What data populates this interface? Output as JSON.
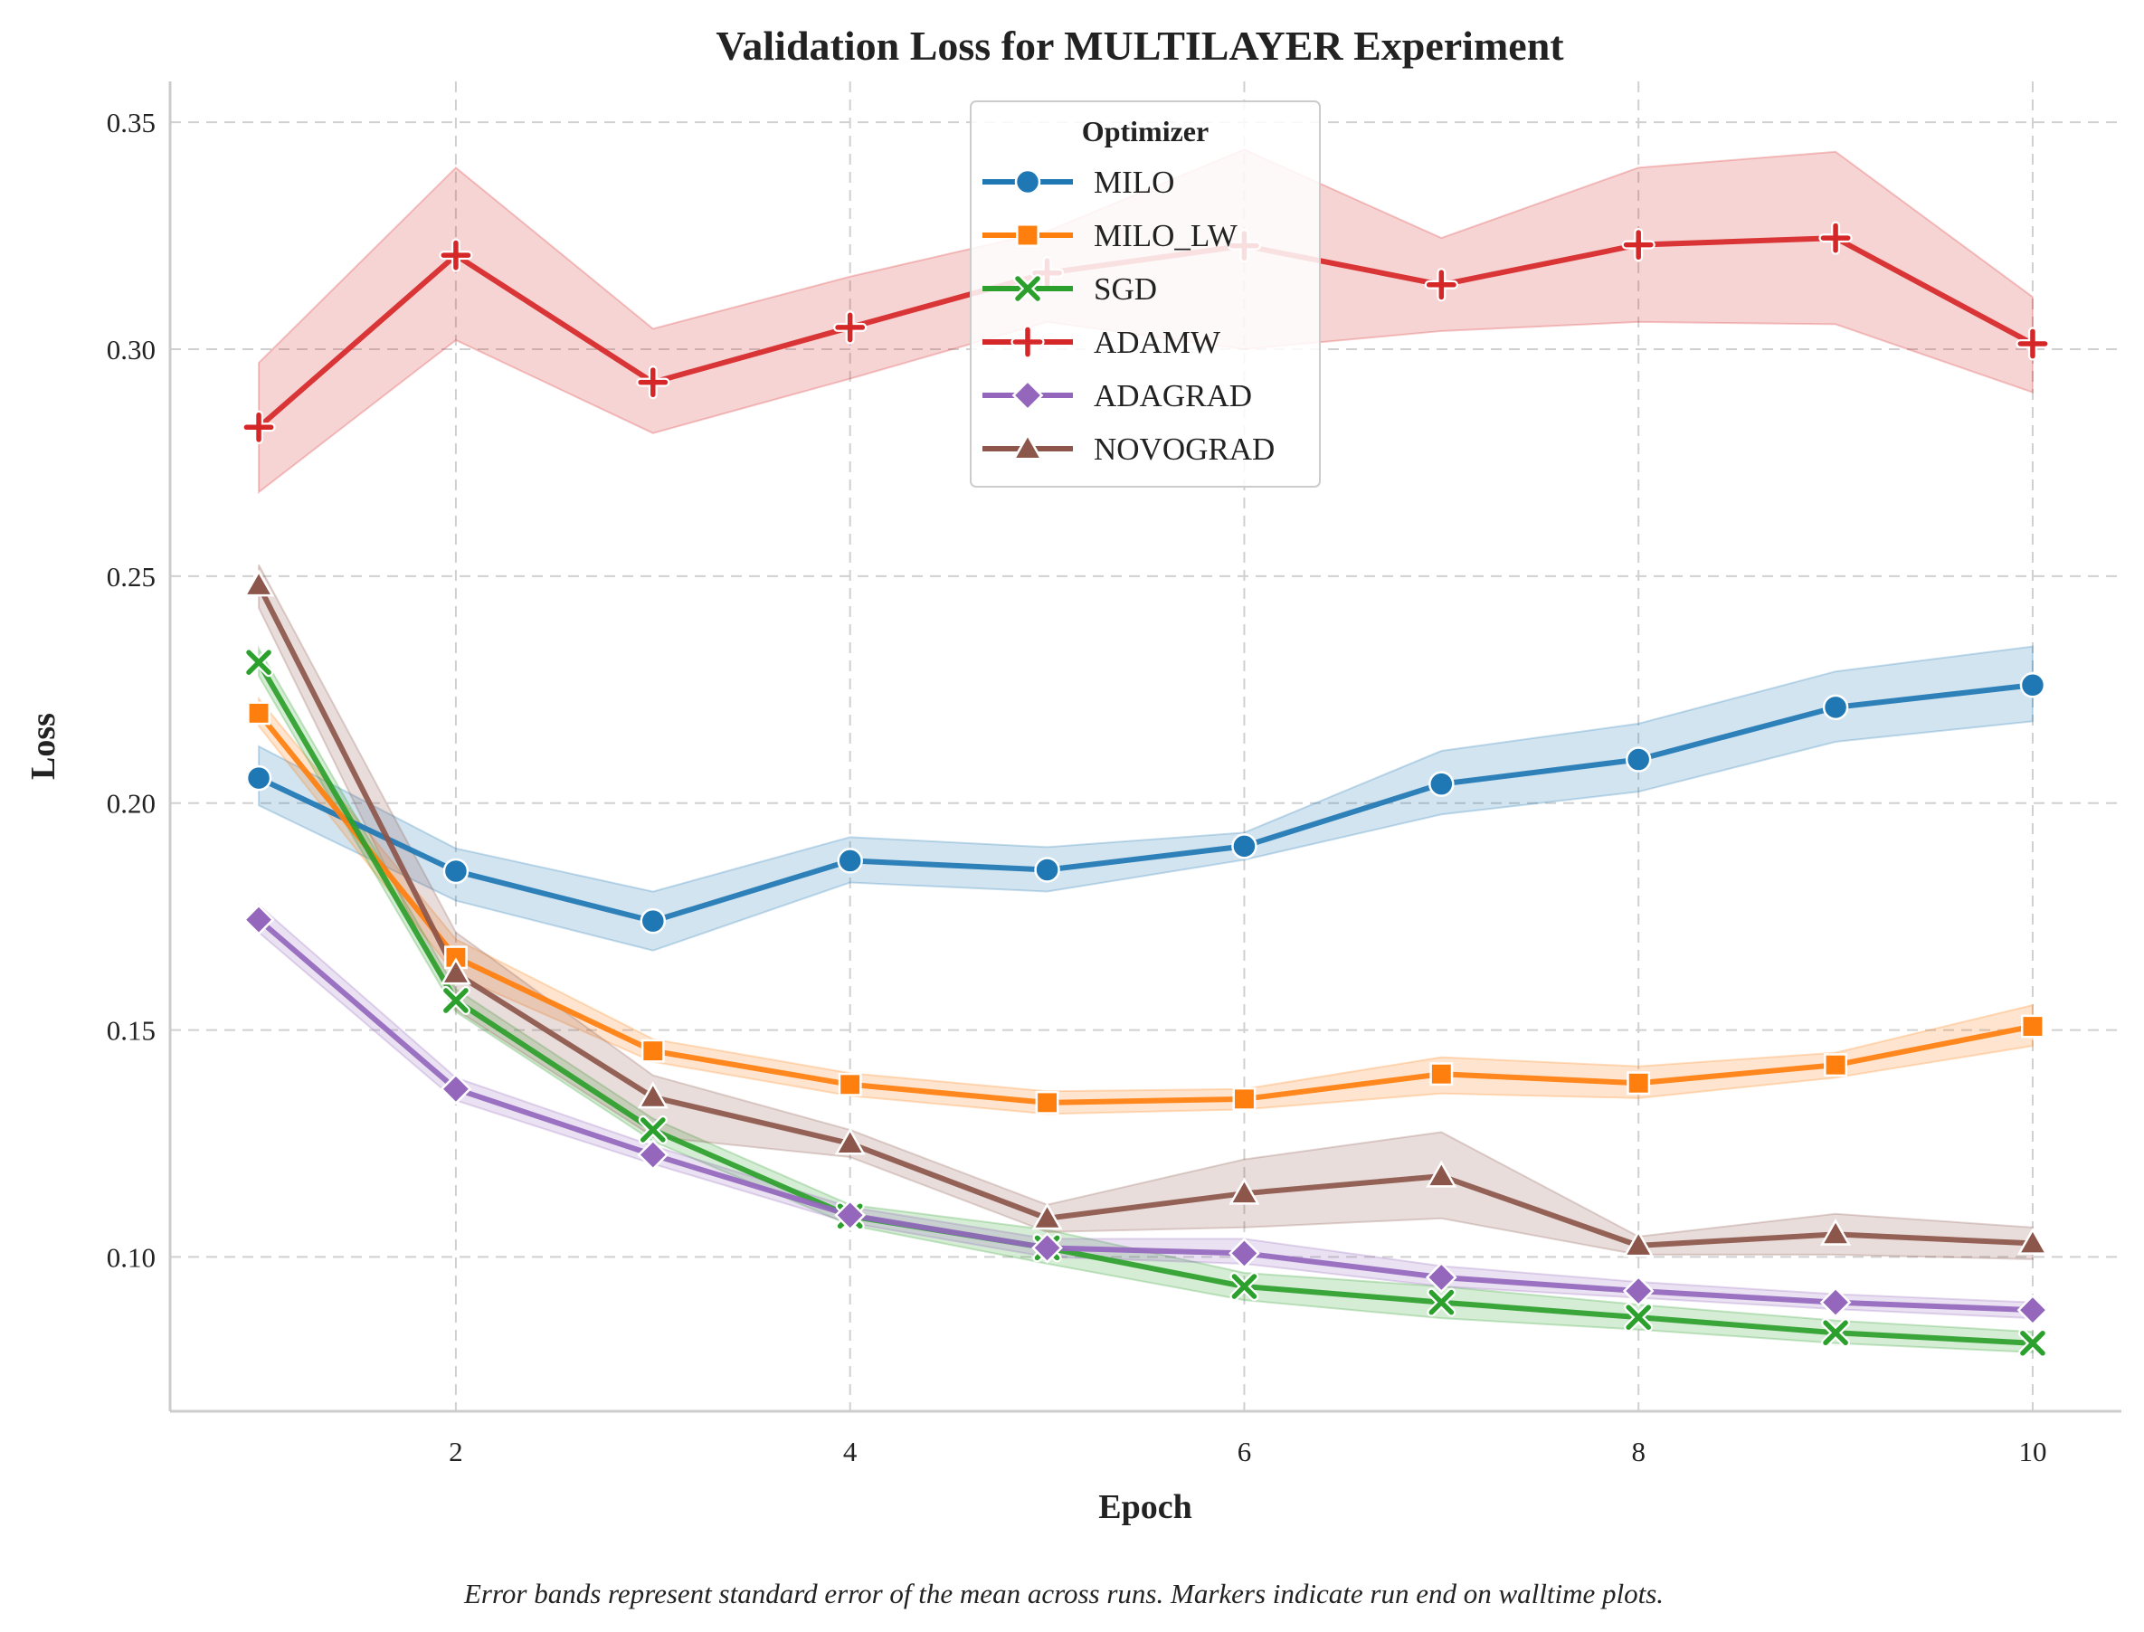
{
  "chart_data": {
    "type": "line",
    "title": "Validation Loss for MULTILAYER Experiment",
    "xlabel": "Epoch",
    "ylabel": "Loss",
    "caption": "Error bands represent standard error of the mean across runs. Markers indicate run end on walltime plots.",
    "x": [
      1,
      2,
      3,
      4,
      5,
      6,
      7,
      8,
      9,
      10
    ],
    "xlim": [
      0.55,
      10.45
    ],
    "ylim": [
      0.066,
      0.359
    ],
    "xticks": [
      2,
      4,
      6,
      8,
      10
    ],
    "yticks": [
      0.1,
      0.15,
      0.2,
      0.25,
      0.3,
      0.35
    ],
    "ytick_labels": [
      "0.10",
      "0.15",
      "0.20",
      "0.25",
      "0.30",
      "0.35"
    ],
    "grid": true,
    "legend": {
      "title": "Optimizer",
      "placement": "top-center"
    },
    "series": [
      {
        "name": "MILO",
        "color": "#1f77b4",
        "marker": "circle",
        "values": [
          0.2055,
          0.185,
          0.174,
          0.1873,
          0.1853,
          0.1905,
          0.2042,
          0.2096,
          0.2211,
          0.226
        ],
        "lower": [
          0.1995,
          0.1785,
          0.1675,
          0.1825,
          0.1805,
          0.1875,
          0.1975,
          0.2025,
          0.2135,
          0.218
        ],
        "upper": [
          0.2125,
          0.19,
          0.1805,
          0.1925,
          0.1903,
          0.1935,
          0.2115,
          0.2175,
          0.229,
          0.2345
        ]
      },
      {
        "name": "MILO_LW",
        "color": "#ff7f0e",
        "marker": "square",
        "values": [
          0.2198,
          0.166,
          0.1454,
          0.138,
          0.134,
          0.1348,
          0.1403,
          0.1383,
          0.1423,
          0.1508
        ],
        "lower": [
          0.217,
          0.162,
          0.143,
          0.1355,
          0.1315,
          0.1325,
          0.136,
          0.135,
          0.1395,
          0.1465
        ],
        "upper": [
          0.223,
          0.17,
          0.148,
          0.1405,
          0.1365,
          0.137,
          0.144,
          0.142,
          0.145,
          0.1555
        ]
      },
      {
        "name": "SGD",
        "color": "#2ca02c",
        "marker": "x",
        "values": [
          0.231,
          0.1565,
          0.128,
          0.109,
          0.102,
          0.0935,
          0.09,
          0.0867,
          0.0833,
          0.081
        ],
        "lower": [
          0.228,
          0.154,
          0.1255,
          0.107,
          0.0985,
          0.0905,
          0.0865,
          0.084,
          0.081,
          0.079
        ],
        "upper": [
          0.234,
          0.159,
          0.1305,
          0.1115,
          0.106,
          0.0965,
          0.0935,
          0.0895,
          0.086,
          0.0835
        ]
      },
      {
        "name": "ADAMW",
        "color": "#d62728",
        "marker": "plus",
        "values": [
          0.2828,
          0.3207,
          0.2927,
          0.3048,
          0.3168,
          0.3228,
          0.3142,
          0.323,
          0.3245,
          0.3012
        ],
        "lower": [
          0.2685,
          0.302,
          0.2815,
          0.2935,
          0.306,
          0.3,
          0.304,
          0.306,
          0.3055,
          0.2905
        ],
        "upper": [
          0.297,
          0.34,
          0.3045,
          0.316,
          0.326,
          0.344,
          0.3245,
          0.34,
          0.3435,
          0.3115
        ]
      },
      {
        "name": "ADAGRAD",
        "color": "#9467bd",
        "marker": "diamond",
        "values": [
          0.1743,
          0.137,
          0.1225,
          0.1092,
          0.102,
          0.1008,
          0.0955,
          0.0925,
          0.09,
          0.0883
        ],
        "lower": [
          0.1715,
          0.1345,
          0.1205,
          0.1075,
          0.1,
          0.0985,
          0.0935,
          0.091,
          0.0885,
          0.0865
        ],
        "upper": [
          0.1775,
          0.1395,
          0.1245,
          0.111,
          0.104,
          0.104,
          0.098,
          0.0945,
          0.0918,
          0.09
        ]
      },
      {
        "name": "NOVOGRAD",
        "color": "#8c564b",
        "marker": "triangle",
        "values": [
          0.248,
          0.1625,
          0.1352,
          0.125,
          0.1085,
          0.114,
          0.1178,
          0.1025,
          0.105,
          0.103
        ],
        "lower": [
          0.243,
          0.1545,
          0.1265,
          0.122,
          0.1055,
          0.1065,
          0.1085,
          0.1005,
          0.1005,
          0.0995
        ],
        "upper": [
          0.2525,
          0.1715,
          0.14,
          0.128,
          0.1115,
          0.1215,
          0.1275,
          0.1045,
          0.1095,
          0.1065
        ]
      }
    ]
  }
}
